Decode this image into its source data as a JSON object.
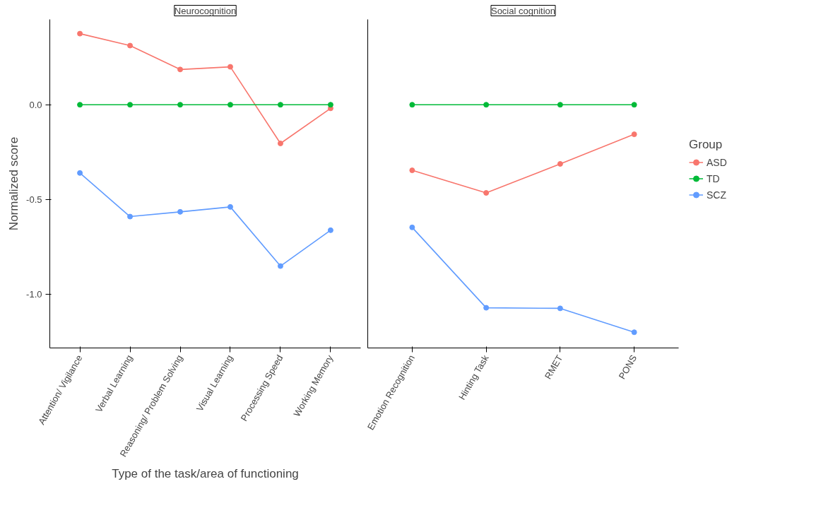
{
  "chart_data": [
    {
      "type": "line",
      "title": "Neurocognition",
      "xlabel": "Type of the task/area of functioning",
      "ylabel": "Normalized score",
      "categories": [
        "Attention/ Vigilance",
        "Verbal Learning",
        "Reasoning/ Problem Solving",
        "Visual Learning",
        "Processing Speed",
        "Working Memory"
      ],
      "series": [
        {
          "color": "#f8766d",
          "values": [
            0.375,
            0.312,
            0.186,
            0.2,
            -0.204,
            -0.019
          ]
        },
        {
          "color": "#00ba38",
          "values": [
            0,
            0,
            0,
            0,
            0,
            0
          ]
        },
        {
          "color": "#619cff",
          "values": [
            -0.36,
            -0.59,
            -0.565,
            -0.539,
            -0.851,
            -0.662
          ]
        }
      ],
      "ylim": [
        -1.283,
        0.45
      ],
      "yticks": [
        {
          "value": -1.0,
          "label": "-1.0"
        },
        {
          "value": -0.5,
          "label": "-0.5"
        },
        {
          "value": 0,
          "label": "0.0"
        }
      ],
      "grid": false,
      "marker": "circle",
      "line_style": "solid"
    },
    {
      "type": "line",
      "title": "Social cognition",
      "legend_title": "Group",
      "categories": [
        "Emotion Recognition",
        "Hinting Task",
        "RMET",
        "PONS"
      ],
      "series": [
        {
          "name": "ASD",
          "color": "#f8766d",
          "values": [
            -0.346,
            -0.465,
            -0.312,
            -0.156
          ]
        },
        {
          "name": "TD",
          "color": "#00ba38",
          "values": [
            0,
            0,
            0,
            0
          ]
        },
        {
          "name": "SCZ",
          "color": "#619cff",
          "values": [
            -0.647,
            -1.071,
            -1.074,
            -1.2
          ]
        }
      ],
      "ylim": [
        -1.283,
        0.45
      ],
      "tick_labels": "x",
      "grid": false,
      "legend": "right",
      "marker": "circle",
      "line_style": "solid"
    }
  ]
}
